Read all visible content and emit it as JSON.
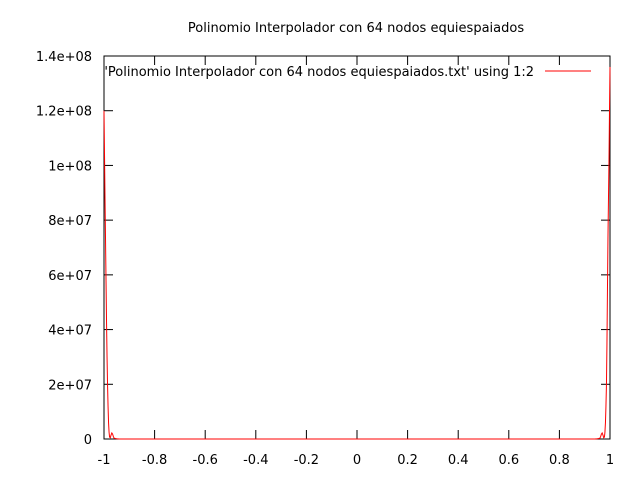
{
  "chart_data": {
    "type": "line",
    "title": "Polinomio Interpolador con 64 nodos equiespaiados",
    "xlabel": "",
    "ylabel": "",
    "xlim": [
      -1,
      1
    ],
    "ylim": [
      0,
      140000000
    ],
    "grid": false,
    "legend_position": "top-right",
    "x_ticks": [
      {
        "value": -1,
        "label": "-1"
      },
      {
        "value": -0.8,
        "label": "-0.8"
      },
      {
        "value": -0.6,
        "label": "-0.6"
      },
      {
        "value": -0.4,
        "label": "-0.4"
      },
      {
        "value": -0.2,
        "label": "-0.2"
      },
      {
        "value": 0,
        "label": "0"
      },
      {
        "value": 0.2,
        "label": "0.2"
      },
      {
        "value": 0.4,
        "label": "0.4"
      },
      {
        "value": 0.6,
        "label": "0.6"
      },
      {
        "value": 0.8,
        "label": "0.8"
      },
      {
        "value": 1,
        "label": "1"
      }
    ],
    "y_ticks": [
      {
        "value": 0,
        "label": "0"
      },
      {
        "value": 20000000,
        "label": "2e+07"
      },
      {
        "value": 40000000,
        "label": "4e+07"
      },
      {
        "value": 60000000,
        "label": "6e+07"
      },
      {
        "value": 80000000,
        "label": "8e+07"
      },
      {
        "value": 100000000,
        "label": "1e+08"
      },
      {
        "value": 120000000,
        "label": "1.2e+08"
      },
      {
        "value": 140000000,
        "label": "1.4e+08"
      }
    ],
    "series": [
      {
        "name": "'Polinomio Interpolador con 64 nodos equiespaiados.txt' using 1:2",
        "color": "#ff0000",
        "x": [
          -1,
          -0.998,
          -0.996,
          -0.994,
          -0.992,
          -0.99,
          -0.988,
          -0.986,
          -0.984,
          -0.982,
          -0.98,
          -0.978,
          -0.975,
          -0.972,
          -0.969,
          -0.966,
          -0.963,
          -0.96,
          -0.955,
          -0.95,
          -0.94,
          -0.9,
          -0.5,
          0,
          0.5,
          0.9,
          0.94,
          0.95,
          0.955,
          0.96,
          0.963,
          0.966,
          0.969,
          0.972,
          0.975,
          0.978,
          0.98,
          0.982,
          0.984,
          0.986,
          0.988,
          0.99,
          0.992,
          0.994,
          0.996,
          0.998,
          1
        ],
        "y": [
          120000000,
          104000000,
          88000000,
          73000000,
          58000000,
          43000000,
          30000000,
          20000000,
          12000000,
          6000000,
          2500000,
          700000,
          500000,
          1500000,
          2200000,
          1800000,
          900000,
          300000,
          200000,
          100000,
          0,
          0,
          0,
          0,
          0,
          0,
          0,
          100000,
          200000,
          300000,
          900000,
          1800000,
          2200000,
          1500000,
          500000,
          700000,
          2500000,
          6000000,
          12000000,
          20000000,
          35000000,
          55000000,
          74000000,
          88000000,
          102000000,
          120000000,
          136000000
        ]
      }
    ]
  }
}
